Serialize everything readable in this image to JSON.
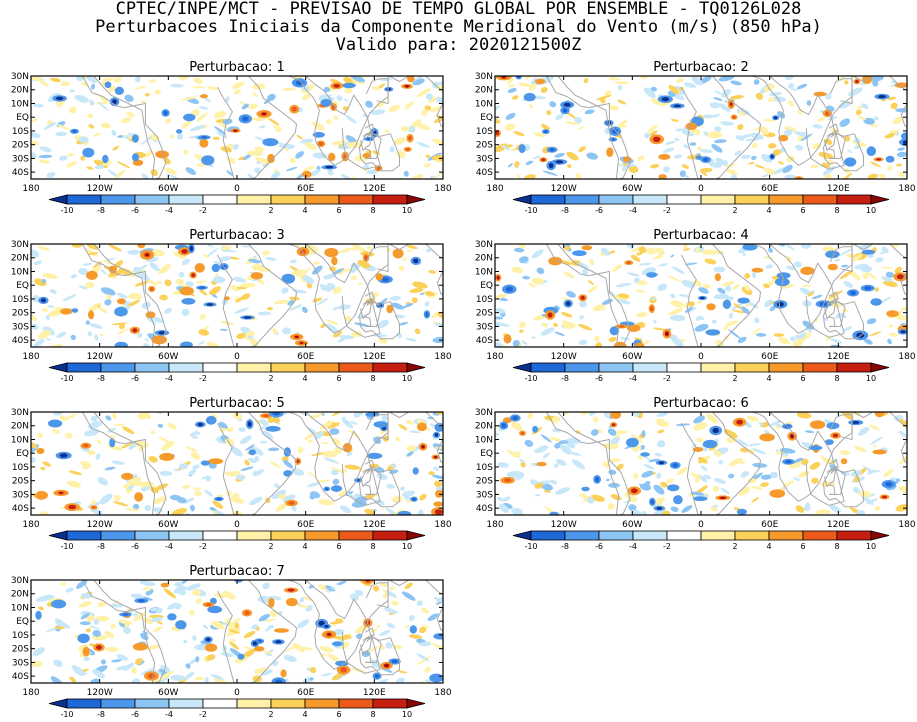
{
  "header": {
    "line1": "CPTEC/INPE/MCT - PREVISAO DE TEMPO GLOBAL POR ENSEMBLE - TQ0126L028",
    "line2": "Perturbacoes Iniciais da Componente Meridional do Vento (m/s) (850 hPa)",
    "line3": "Valido para: 2020121500Z"
  },
  "map_axes": {
    "lat_labels": [
      "30N",
      "20N",
      "10N",
      "EQ",
      "10S",
      "20S",
      "30S",
      "40S"
    ],
    "lon_labels": [
      "180",
      "120W",
      "60W",
      "0",
      "60E",
      "120E",
      "180"
    ]
  },
  "colorbar": {
    "labels": [
      "-10",
      "-8",
      "-6",
      "-4",
      "-2",
      "2",
      "4",
      "6",
      "8",
      "10"
    ],
    "colors": [
      "#0b2f8f",
      "#1f66d6",
      "#4d97ea",
      "#8cc4f4",
      "#c8e8fa",
      "#ffffff",
      "#fff1a8",
      "#fbd15a",
      "#f69a2c",
      "#eb5a1a",
      "#c61e10",
      "#8a0606"
    ]
  },
  "panels": [
    {
      "title": "Perturbacao: 1"
    },
    {
      "title": "Perturbacao: 2"
    },
    {
      "title": "Perturbacao: 3"
    },
    {
      "title": "Perturbacao: 4"
    },
    {
      "title": "Perturbacao: 5"
    },
    {
      "title": "Perturbacao: 6"
    },
    {
      "title": "Perturbacao: 7"
    }
  ]
}
